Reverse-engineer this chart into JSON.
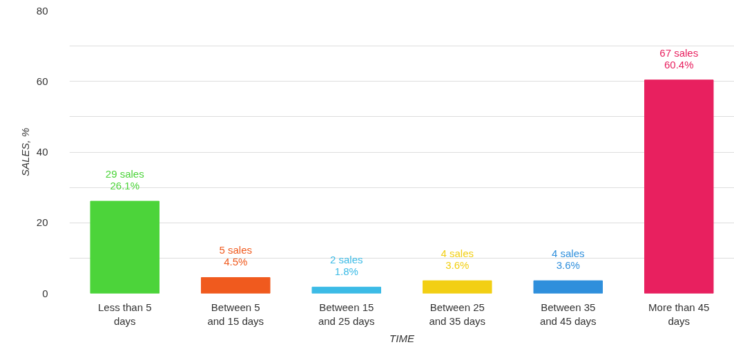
{
  "chart_data": {
    "type": "bar",
    "xlabel": "TIME",
    "ylabel": "SALES, %",
    "categories": [
      "Less than 5 days",
      "Between 5 and 15 days",
      "Between 15 and 25 days",
      "Between 25 and 35 days",
      "Between 35 and 45 days",
      "More than 45 days"
    ],
    "values": [
      26.1,
      4.5,
      1.8,
      3.6,
      3.6,
      60.4
    ],
    "colors": [
      "#4cd43a",
      "#f05a1e",
      "#3cbbe6",
      "#f2cf14",
      "#2f8fdc",
      "#e8205f"
    ],
    "value_labels": [
      "29 sales\n26.1%",
      "5 sales\n4.5%",
      "2 sales\n1.8%",
      "4 sales\n3.6%",
      "4 sales\n3.6%",
      "67 sales\n60.4%"
    ],
    "ylim": [
      0,
      80
    ],
    "yticks": [
      0,
      {
        "value": 10,
        "label": null
      },
      20,
      {
        "value": 30,
        "label": null
      },
      40,
      {
        "value": 50,
        "label": null
      },
      60,
      {
        "value": 70,
        "label": null
      },
      80
    ],
    "grid": "y"
  }
}
